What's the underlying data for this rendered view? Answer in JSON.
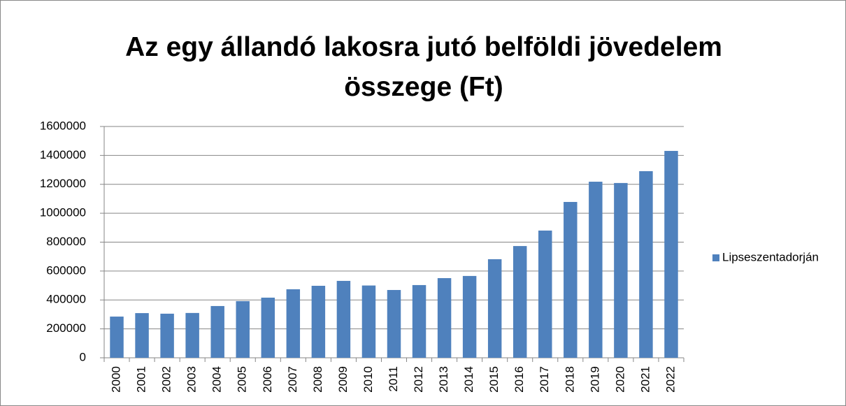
{
  "chart_data": {
    "type": "bar",
    "title": "Az egy állandó lakosra jutó belföldi jövedelem összege (Ft)",
    "categories": [
      "2000",
      "2001",
      "2002",
      "2003",
      "2004",
      "2005",
      "2006",
      "2007",
      "2008",
      "2009",
      "2010",
      "2011",
      "2012",
      "2013",
      "2014",
      "2015",
      "2016",
      "2017",
      "2018",
      "2019",
      "2020",
      "2021",
      "2022"
    ],
    "series": [
      {
        "name": "Lipseszentadorján",
        "color": "#4f81bd",
        "values": [
          285000,
          309000,
          305000,
          310000,
          358000,
          392000,
          416000,
          474000,
          498000,
          532000,
          500000,
          469000,
          503000,
          551000,
          566000,
          682000,
          773000,
          880000,
          1078000,
          1218000,
          1209000,
          1291000,
          1431000
        ]
      }
    ],
    "ylim": [
      0,
      1600000
    ],
    "yticks": [
      0,
      200000,
      400000,
      600000,
      800000,
      1000000,
      1200000,
      1400000,
      1600000
    ],
    "grid": true,
    "legend": "right"
  }
}
